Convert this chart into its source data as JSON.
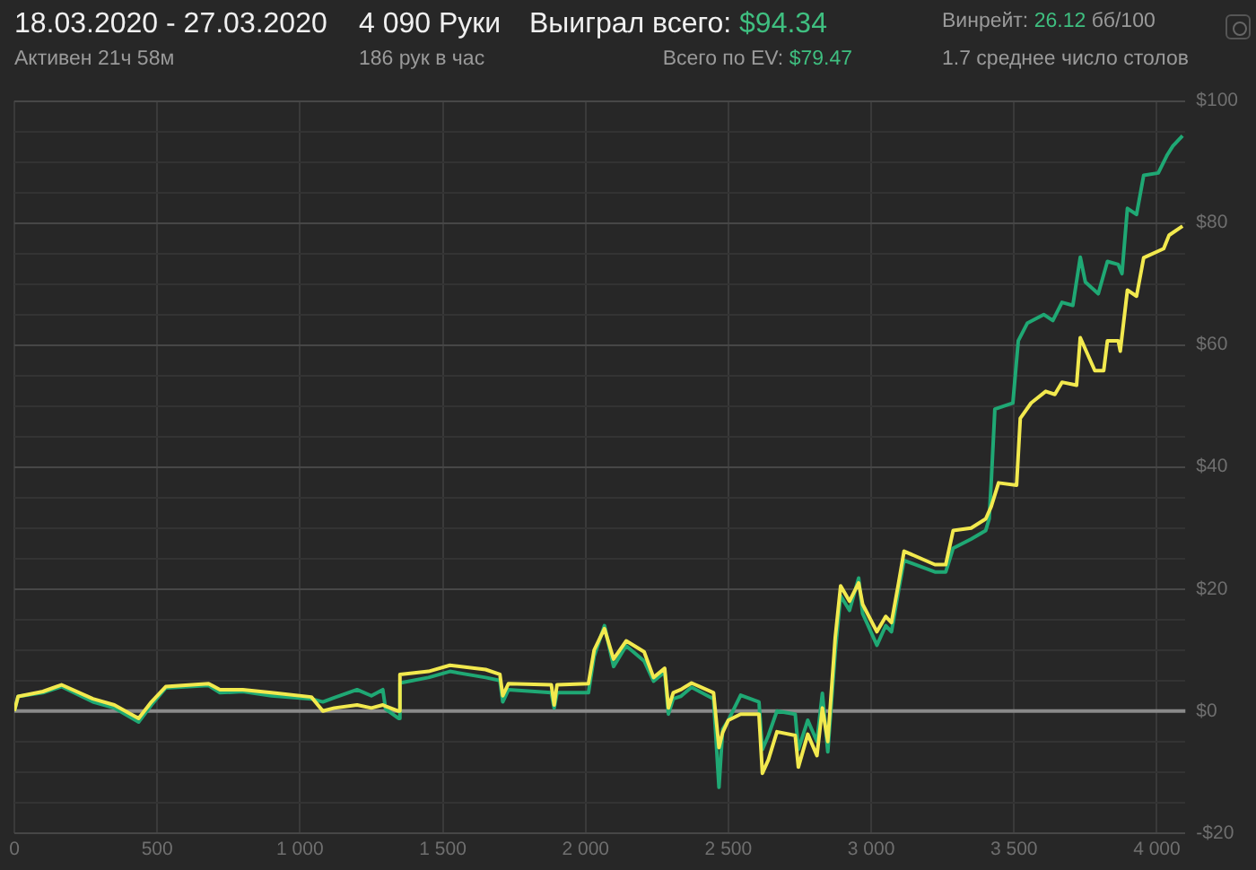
{
  "chart_data": {
    "type": "line",
    "title": "18.03.2020 - 27.03.2020",
    "subtitle": "Активен 21ч 58м",
    "annotations": [
      "4 090 Руки",
      "186 рук в час",
      "Выиграл всего:",
      "$94.34",
      "Всего по EV:",
      "$79.47",
      "Винрейт:",
      "26.12",
      "бб/100",
      "1.7 среднее число столов"
    ],
    "xlim": [
      0,
      4100
    ],
    "xticks": [
      0,
      500,
      {
        "value": 1000,
        "label": "1 000"
      },
      {
        "value": 1500,
        "label": "1 500"
      },
      {
        "value": 2000,
        "label": "2 000"
      },
      {
        "value": 2500,
        "label": "2 500"
      },
      {
        "value": 3000,
        "label": "3 000"
      },
      {
        "value": 3500,
        "label": "3 500"
      },
      {
        "value": 4000,
        "label": "4 000"
      }
    ],
    "ylim": [
      -20,
      100
    ],
    "yticks": [
      {
        "value": -20,
        "label": "-$20"
      },
      {
        "value": -15,
        "label": null
      },
      {
        "value": -10,
        "label": null
      },
      {
        "value": -5,
        "label": null
      },
      {
        "value": 0,
        "label": "$0"
      },
      {
        "value": 5,
        "label": null
      },
      {
        "value": 10,
        "label": null
      },
      {
        "value": 15,
        "label": null
      },
      {
        "value": 20,
        "label": "$20"
      },
      {
        "value": 25,
        "label": null
      },
      {
        "value": 30,
        "label": null
      },
      {
        "value": 35,
        "label": null
      },
      {
        "value": 40,
        "label": "$40"
      },
      {
        "value": 45,
        "label": null
      },
      {
        "value": 50,
        "label": null
      },
      {
        "value": 55,
        "label": null
      },
      {
        "value": 60,
        "label": "$60"
      },
      {
        "value": 65,
        "label": null
      },
      {
        "value": 70,
        "label": null
      },
      {
        "value": 75,
        "label": null
      },
      {
        "value": 80,
        "label": "$80"
      },
      {
        "value": 85,
        "label": null
      },
      {
        "value": 90,
        "label": null
      },
      {
        "value": 95,
        "label": null
      },
      {
        "value": 100,
        "label": "$100"
      }
    ],
    "grid": true,
    "legend": false,
    "marker": "none",
    "line_style": "solid",
    "ref_lines": [
      {
        "axis": "y",
        "value": 0,
        "color": "#8a8a8a"
      }
    ],
    "series": [
      {
        "color": "#f2e94e",
        "x": [
          0,
          13,
          100,
          165,
          275,
          350,
          435,
          480,
          530,
          680,
          720,
          800,
          900,
          1040,
          1080,
          1120,
          1200,
          1250,
          1290,
          1300,
          1345,
          1350,
          1450,
          1525,
          1650,
          1700,
          1710,
          1730,
          1880,
          1890,
          1900,
          2010,
          2030,
          2066,
          2098,
          2142,
          2205,
          2238,
          2277,
          2290,
          2307,
          2333,
          2371,
          2448,
          2467,
          2480,
          2500,
          2543,
          2607,
          2619,
          2640,
          2670,
          2734,
          2745,
          2778,
          2810,
          2829,
          2848,
          2874,
          2893,
          2924,
          2956,
          2970,
          3020,
          3051,
          3071,
          3096,
          3115,
          3223,
          3261,
          3287,
          3350,
          3401,
          3420,
          3446,
          3509,
          3522,
          3560,
          3611,
          3643,
          3668,
          3719,
          3732,
          3783,
          3814,
          3827,
          3865,
          3872,
          3897,
          3929,
          3954,
          4024,
          4043,
          4090
        ],
        "values": [
          0,
          2.4,
          3.2,
          4.3,
          2,
          1,
          -1.2,
          1.5,
          4,
          4.5,
          3.5,
          3.5,
          3,
          2.3,
          0,
          0.5,
          1,
          0.5,
          1,
          0.8,
          0,
          6,
          6.5,
          7.5,
          6.8,
          6,
          2.5,
          4.5,
          4.3,
          1,
          4.3,
          4.5,
          10,
          13.5,
          8.5,
          11.5,
          9.7,
          5.5,
          7,
          0.5,
          3,
          3.5,
          4.6,
          3,
          -6,
          -3.5,
          -1.5,
          -0.5,
          -0.5,
          -10.2,
          -8,
          -3.4,
          -4,
          -9.2,
          -3.8,
          -7.3,
          0.5,
          -5,
          12,
          20.5,
          18,
          21,
          17.5,
          13,
          15.5,
          14.5,
          21,
          26.2,
          24,
          24,
          29.6,
          30,
          31.5,
          33.5,
          37.4,
          37,
          48,
          50.5,
          52.4,
          51.9,
          53.9,
          53.4,
          61.2,
          55.8,
          55.8,
          60.7,
          60.7,
          59,
          69,
          68,
          74.3,
          75.8,
          78,
          79.5
        ]
      },
      {
        "color": "#1fa874",
        "x": [
          0,
          13,
          100,
          165,
          275,
          350,
          435,
          480,
          530,
          680,
          720,
          800,
          900,
          1040,
          1080,
          1120,
          1200,
          1250,
          1290,
          1300,
          1345,
          1350,
          1450,
          1525,
          1650,
          1700,
          1710,
          1730,
          1880,
          1890,
          1900,
          2010,
          2030,
          2066,
          2098,
          2142,
          2205,
          2238,
          2277,
          2290,
          2307,
          2333,
          2371,
          2448,
          2467,
          2480,
          2500,
          2543,
          2607,
          2619,
          2640,
          2670,
          2734,
          2745,
          2778,
          2810,
          2829,
          2848,
          2874,
          2893,
          2924,
          2956,
          2970,
          3020,
          3051,
          3071,
          3096,
          3115,
          3223,
          3261,
          3287,
          3350,
          3401,
          3413,
          3420,
          3433,
          3496,
          3515,
          3547,
          3604,
          3636,
          3668,
          3706,
          3732,
          3750,
          3795,
          3827,
          3865,
          3878,
          3897,
          3929,
          3954,
          4005,
          4037,
          4056,
          4090
        ],
        "values": [
          0,
          2.4,
          3,
          4,
          1.5,
          0.5,
          -1.8,
          1,
          3.8,
          4.2,
          3,
          3.2,
          2.5,
          2,
          1.5,
          2.2,
          3.5,
          2.5,
          3.5,
          0.3,
          -1.2,
          4.6,
          5.5,
          6.5,
          5.5,
          5,
          1.5,
          3.5,
          3,
          0.5,
          3,
          3,
          9,
          14,
          7.3,
          10.7,
          8.2,
          4.9,
          6.4,
          -0.5,
          2,
          2.4,
          3.9,
          2,
          -12.5,
          -3,
          -1.5,
          2.6,
          1.5,
          -6.3,
          -4,
          0,
          -0.5,
          -6.3,
          -1.5,
          -5,
          2.9,
          -6.7,
          9.7,
          18.9,
          16.5,
          21.8,
          16,
          10.8,
          14,
          13,
          19.8,
          24.7,
          22.8,
          22.8,
          26.7,
          28.2,
          29.6,
          31.5,
          37.3,
          49.5,
          50.5,
          60.7,
          63.6,
          65,
          64,
          67,
          66.5,
          74.4,
          70.3,
          68.4,
          73.7,
          73.2,
          71.7,
          82.4,
          81.4,
          87.8,
          88.2,
          91.2,
          92.6,
          94.3
        ]
      }
    ]
  }
}
